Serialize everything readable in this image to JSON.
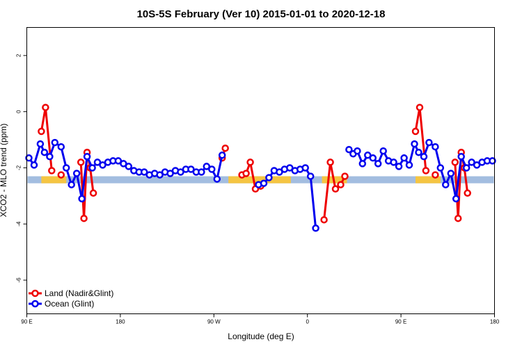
{
  "chart_data": {
    "type": "line",
    "title": "10S-5S February (Ver 10)   2015-01-01 to 2020-12-18",
    "xlabel": "Longitude (deg E)",
    "ylabel": "XCO2 - MLO trend (ppm)",
    "xlim": [
      90,
      540
    ],
    "ylim": [
      -7.2,
      3.0
    ],
    "x_ticks": [
      {
        "value": 90,
        "label": "90 E"
      },
      {
        "value": 180,
        "label": "180"
      },
      {
        "value": 270,
        "label": "90 W"
      },
      {
        "value": 360,
        "label": "0"
      },
      {
        "value": 450,
        "label": "90 E"
      },
      {
        "value": 540,
        "label": "180"
      }
    ],
    "y_ticks": [
      {
        "value": 2,
        "label": "2"
      },
      {
        "value": 0,
        "label": "0"
      },
      {
        "value": -2,
        "label": "-2"
      },
      {
        "value": -4,
        "label": "-4"
      },
      {
        "value": -6,
        "label": "-6"
      }
    ],
    "land_band": {
      "from": -2.55,
      "to": -2.3,
      "color": "#a3bde0"
    },
    "land_segments": [
      {
        "from": 104,
        "to": 128
      },
      {
        "from": 284,
        "to": 344
      },
      {
        "from": 374,
        "to": 398
      },
      {
        "from": 464,
        "to": 488
      }
    ],
    "land_segment_color": "#f5c542",
    "legend": {
      "position": "bottom-left"
    },
    "series": [
      {
        "name": "Land (Nadir&Glint)",
        "color": "#ee0000",
        "segments": [
          [
            [
              104,
              -0.7
            ],
            [
              108,
              0.15
            ],
            [
              114,
              -2.1
            ]
          ],
          [
            [
              123,
              -2.25
            ]
          ],
          [
            [
              142,
              -1.8
            ],
            [
              145,
              -3.8
            ],
            [
              148,
              -1.45
            ],
            [
              151,
              -2.0
            ],
            [
              154,
              -2.9
            ]
          ],
          [
            [
              278,
              -1.65
            ],
            [
              281,
              -1.3
            ]
          ],
          [
            [
              297,
              -2.25
            ],
            [
              301,
              -2.2
            ],
            [
              305,
              -1.8
            ],
            [
              310,
              -2.75
            ],
            [
              315,
              -2.65
            ]
          ],
          [
            [
              376,
              -3.85
            ],
            [
              382,
              -1.8
            ],
            [
              387,
              -2.75
            ],
            [
              392,
              -2.6
            ],
            [
              396,
              -2.3
            ]
          ],
          [
            [
              464,
              -0.7
            ],
            [
              468,
              0.15
            ],
            [
              474,
              -2.1
            ]
          ],
          [
            [
              483,
              -2.25
            ]
          ],
          [
            [
              502,
              -1.8
            ],
            [
              505,
              -3.8
            ],
            [
              508,
              -1.45
            ],
            [
              511,
              -2.0
            ],
            [
              514,
              -2.9
            ]
          ]
        ]
      },
      {
        "name": "Ocean (Glint)",
        "color": "#0000ee",
        "segments": [
          [
            [
              92,
              -1.65
            ],
            [
              97,
              -1.9
            ],
            [
              103,
              -1.15
            ],
            [
              107,
              -1.45
            ],
            [
              112,
              -1.6
            ],
            [
              117,
              -1.1
            ],
            [
              123,
              -1.25
            ],
            [
              128,
              -2.0
            ],
            [
              133,
              -2.6
            ],
            [
              138,
              -2.2
            ],
            [
              143,
              -3.1
            ],
            [
              148,
              -1.6
            ],
            [
              153,
              -2.0
            ],
            [
              158,
              -1.8
            ],
            [
              163,
              -1.9
            ],
            [
              168,
              -1.8
            ],
            [
              173,
              -1.75
            ],
            [
              178,
              -1.75
            ],
            [
              183,
              -1.85
            ],
            [
              188,
              -1.95
            ],
            [
              193,
              -2.1
            ],
            [
              198,
              -2.15
            ],
            [
              203,
              -2.15
            ],
            [
              208,
              -2.25
            ],
            [
              213,
              -2.2
            ],
            [
              218,
              -2.25
            ],
            [
              223,
              -2.15
            ],
            [
              228,
              -2.2
            ],
            [
              233,
              -2.1
            ],
            [
              238,
              -2.15
            ],
            [
              243,
              -2.05
            ],
            [
              248,
              -2.05
            ],
            [
              253,
              -2.15
            ],
            [
              258,
              -2.15
            ],
            [
              263,
              -1.95
            ],
            [
              268,
              -2.05
            ],
            [
              273,
              -2.4
            ],
            [
              278,
              -1.55
            ]
          ],
          [
            [
              313,
              -2.6
            ],
            [
              318,
              -2.55
            ],
            [
              323,
              -2.35
            ],
            [
              328,
              -2.1
            ],
            [
              333,
              -2.15
            ],
            [
              338,
              -2.05
            ],
            [
              343,
              -2.0
            ],
            [
              348,
              -2.1
            ],
            [
              353,
              -2.05
            ],
            [
              358,
              -2.0
            ],
            [
              363,
              -2.3
            ],
            [
              368,
              -4.15
            ]
          ],
          [
            [
              400,
              -1.35
            ],
            [
              404,
              -1.5
            ],
            [
              408,
              -1.4
            ],
            [
              413,
              -1.85
            ],
            [
              418,
              -1.55
            ],
            [
              423,
              -1.65
            ],
            [
              428,
              -1.85
            ],
            [
              433,
              -1.4
            ],
            [
              438,
              -1.75
            ],
            [
              443,
              -1.8
            ],
            [
              448,
              -1.95
            ],
            [
              453,
              -1.65
            ],
            [
              458,
              -1.9
            ],
            [
              463,
              -1.15
            ],
            [
              467,
              -1.45
            ],
            [
              472,
              -1.6
            ],
            [
              477,
              -1.1
            ],
            [
              483,
              -1.25
            ],
            [
              488,
              -2.0
            ],
            [
              493,
              -2.6
            ],
            [
              498,
              -2.2
            ],
            [
              503,
              -3.1
            ],
            [
              508,
              -1.6
            ],
            [
              513,
              -2.0
            ],
            [
              518,
              -1.8
            ],
            [
              523,
              -1.9
            ],
            [
              528,
              -1.8
            ],
            [
              533,
              -1.75
            ],
            [
              538,
              -1.75
            ]
          ]
        ]
      }
    ]
  }
}
